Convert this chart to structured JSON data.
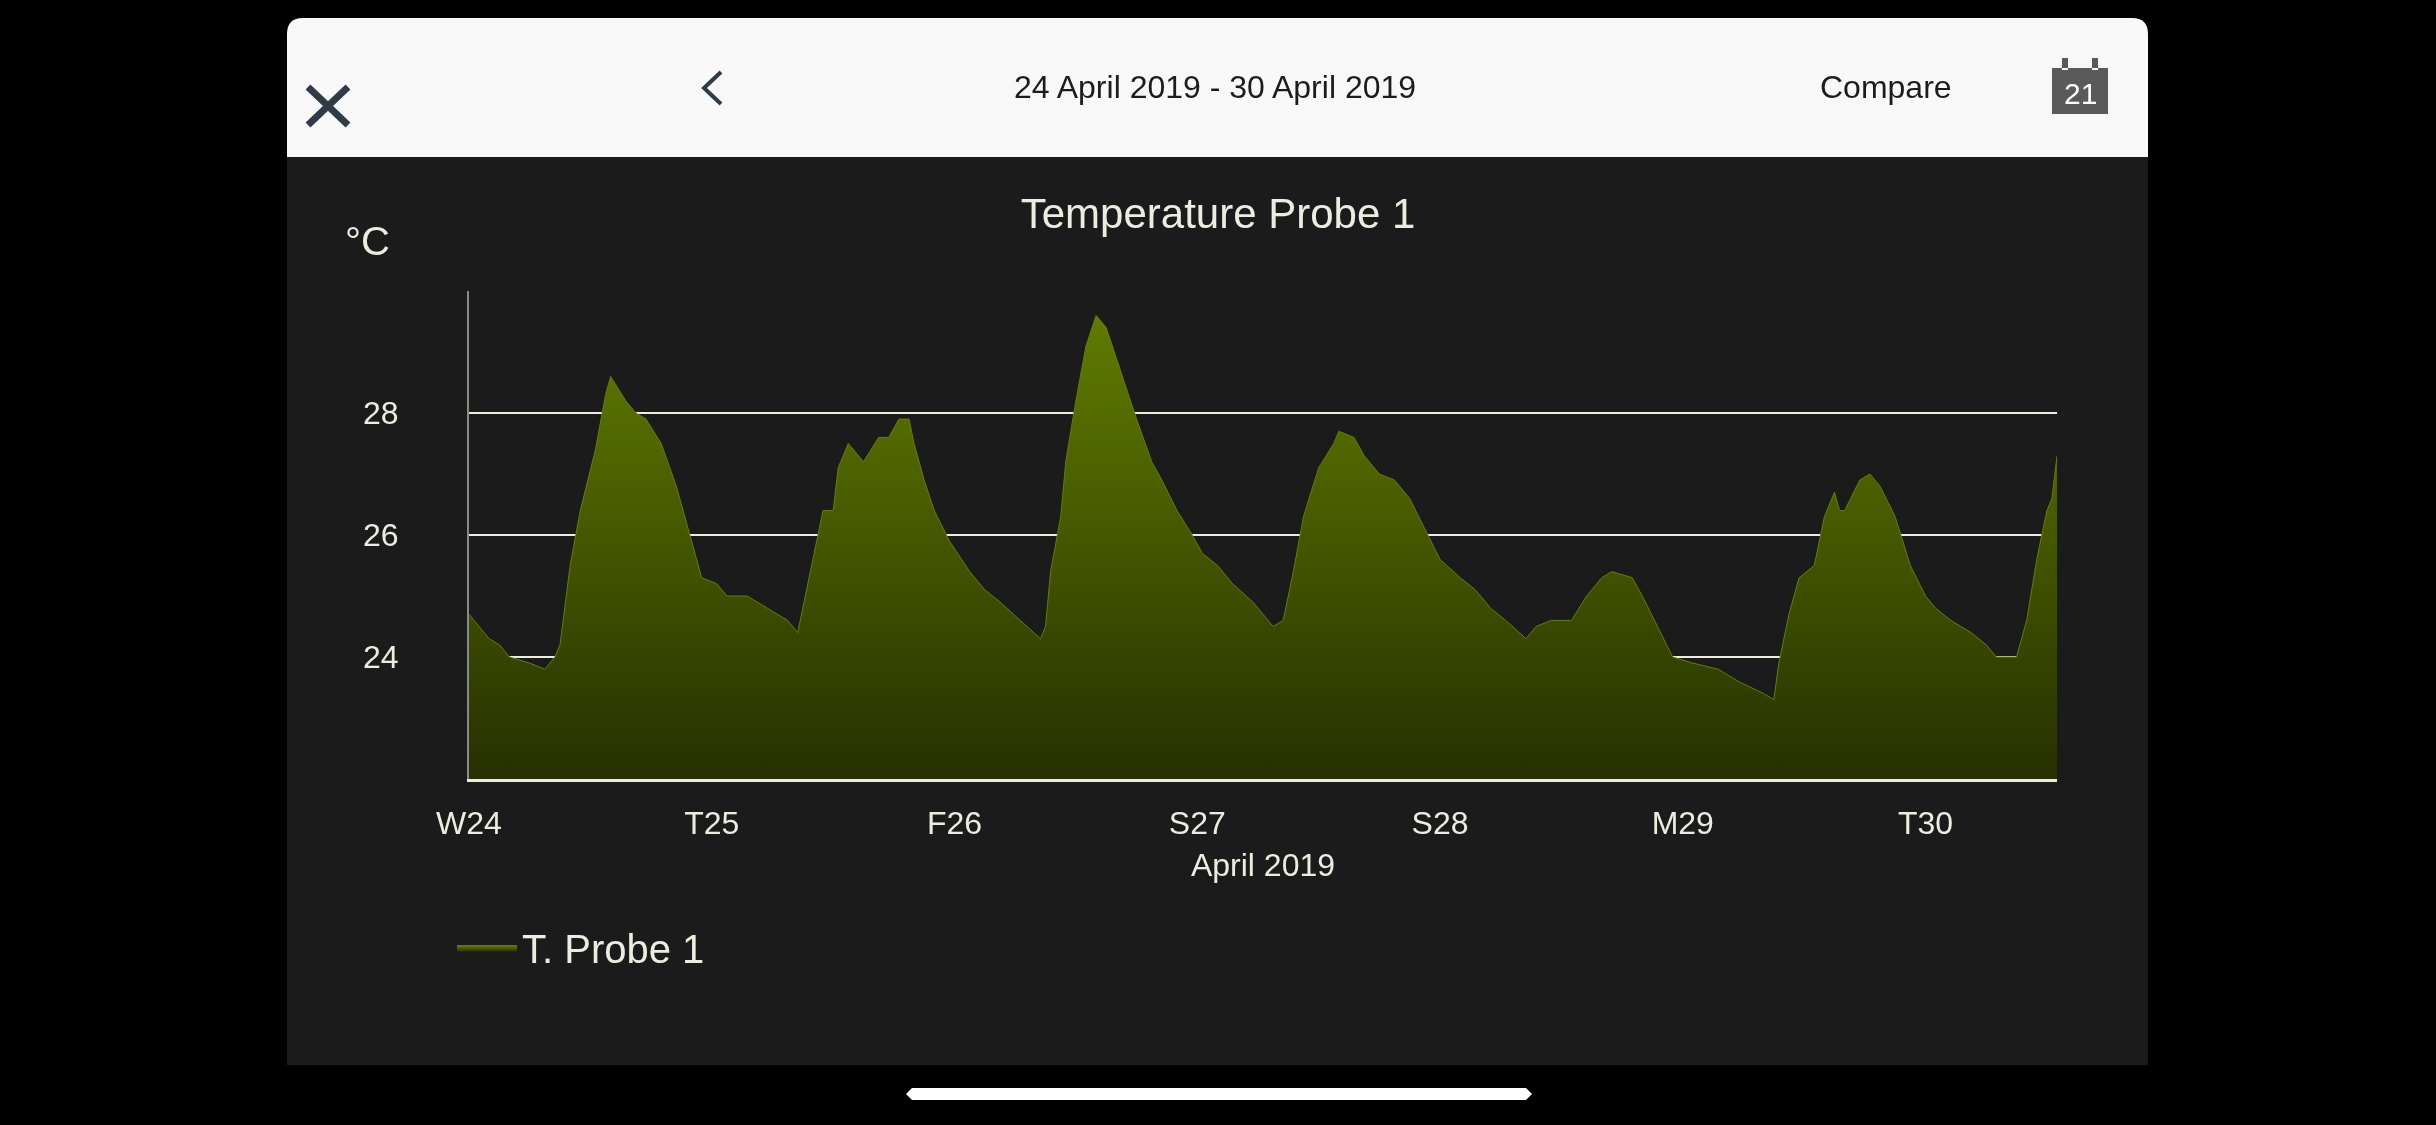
{
  "chart_data": {
    "type": "area",
    "title": "Temperature Probe 1",
    "subtitle": "24 April 2019 - 30 April 2019",
    "xlabel": "April 2019",
    "ylabel": "°C",
    "annotations": [
      "Compare",
      "21"
    ],
    "x": [
      "2019-04-24T00:00",
      "2019-04-24T00:30",
      "2019-04-24T01:30",
      "2019-04-24T02:00",
      "2019-04-24T03:00",
      "2019-04-24T04:00",
      "2019-04-24T06:00",
      "2019-04-24T07:30",
      "2019-04-24T08:30",
      "2019-04-24T09:00",
      "2019-04-24T10:00",
      "2019-04-24T11:00",
      "2019-04-24T12:30",
      "2019-04-24T13:30",
      "2019-04-24T14:00",
      "2019-04-24T15:30",
      "2019-04-24T16:30",
      "2019-04-24T17:30",
      "2019-04-24T19:00",
      "2019-04-24T20:30",
      "2019-04-24T22:00",
      "2019-04-24T23:00",
      "2019-04-25T00:30",
      "2019-04-25T01:30",
      "2019-04-25T03:30",
      "2019-04-25T05:30",
      "2019-04-25T07:30",
      "2019-04-25T08:30",
      "2019-04-25T09:00",
      "2019-04-25T10:00",
      "2019-04-25T11:00",
      "2019-04-25T12:00",
      "2019-04-25T12:30",
      "2019-04-25T13:30",
      "2019-04-25T15:00",
      "2019-04-25T16:30",
      "2019-04-25T17:30",
      "2019-04-25T18:30",
      "2019-04-25T19:30",
      "2019-04-25T20:00",
      "2019-04-25T21:00",
      "2019-04-25T22:00",
      "2019-04-25T23:30",
      "2019-04-26T01:30",
      "2019-04-26T03:00",
      "2019-04-26T04:30",
      "2019-04-26T06:30",
      "2019-04-26T08:30",
      "2019-04-26T09:00",
      "2019-04-26T09:30",
      "2019-04-26T10:30",
      "2019-04-26T11:00",
      "2019-04-26T12:00",
      "2019-04-26T13:00",
      "2019-04-26T14:00",
      "2019-04-26T15:00",
      "2019-04-26T16:00",
      "2019-04-26T17:00",
      "2019-04-26T18:00",
      "2019-04-26T19:30",
      "2019-04-26T20:30",
      "2019-04-26T22:00",
      "2019-04-26T23:30",
      "2019-04-27T00:30",
      "2019-04-27T02:00",
      "2019-04-27T03:30",
      "2019-04-27T05:30",
      "2019-04-27T06:30",
      "2019-04-27T07:30",
      "2019-04-27T08:30",
      "2019-04-27T09:30",
      "2019-04-27T10:30",
      "2019-04-27T12:00",
      "2019-04-27T13:30",
      "2019-04-27T14:00",
      "2019-04-27T15:30",
      "2019-04-27T16:30",
      "2019-04-27T18:00",
      "2019-04-27T19:30",
      "2019-04-27T21:00",
      "2019-04-27T22:30",
      "2019-04-28T00:00",
      "2019-04-28T02:00",
      "2019-04-28T03:30",
      "2019-04-28T05:00",
      "2019-04-28T06:30",
      "2019-04-28T08:30",
      "2019-04-28T09:30",
      "2019-04-28T11:00",
      "2019-04-28T13:00",
      "2019-04-28T14:30",
      "2019-04-28T16:00",
      "2019-04-28T17:00",
      "2019-04-28T19:00",
      "2019-04-28T20:00",
      "2019-04-28T21:30",
      "2019-04-28T23:00",
      "2019-04-29T01:00",
      "2019-04-29T03:30",
      "2019-04-29T05:30",
      "2019-04-29T08:00",
      "2019-04-29T09:00",
      "2019-04-29T09:30",
      "2019-04-29T10:30",
      "2019-04-29T11:30",
      "2019-04-29T13:00",
      "2019-04-29T14:00",
      "2019-04-29T15:00",
      "2019-04-29T15:30",
      "2019-04-29T16:00",
      "2019-04-29T17:30",
      "2019-04-29T18:30",
      "2019-04-29T19:30",
      "2019-04-29T21:00",
      "2019-04-29T22:30",
      "2019-04-30T00:00",
      "2019-04-30T01:00",
      "2019-04-30T02:30",
      "2019-04-30T04:30",
      "2019-04-30T06:00",
      "2019-04-30T07:00",
      "2019-04-30T09:00",
      "2019-04-30T10:00",
      "2019-04-30T11:00",
      "2019-04-30T12:00",
      "2019-04-30T12:30",
      "2019-04-30T13:00"
    ],
    "series": [
      {
        "name": "T. Probe 1",
        "color": "#647f00",
        "values": [
          24.7,
          24.6,
          24.4,
          24.3,
          24.2,
          24.0,
          23.9,
          23.8,
          24.0,
          24.2,
          25.5,
          26.4,
          27.4,
          28.3,
          28.6,
          28.2,
          28.0,
          27.9,
          27.5,
          26.8,
          25.9,
          25.3,
          25.2,
          25.0,
          25.0,
          24.8,
          24.6,
          24.4,
          24.8,
          25.6,
          26.4,
          26.4,
          27.1,
          27.5,
          27.2,
          27.6,
          27.6,
          27.9,
          27.9,
          27.5,
          26.9,
          26.4,
          25.9,
          25.4,
          25.1,
          24.9,
          24.6,
          24.3,
          24.5,
          25.4,
          26.3,
          27.2,
          28.2,
          29.1,
          29.6,
          29.4,
          28.9,
          28.4,
          27.9,
          27.2,
          26.9,
          26.4,
          26.0,
          25.7,
          25.5,
          25.2,
          24.9,
          24.7,
          24.5,
          24.6,
          25.4,
          26.3,
          27.1,
          27.5,
          27.7,
          27.6,
          27.3,
          27.0,
          26.9,
          26.6,
          26.1,
          25.6,
          25.3,
          25.1,
          24.8,
          24.6,
          24.3,
          24.5,
          24.6,
          24.6,
          25.0,
          25.3,
          25.4,
          25.3,
          25.0,
          24.5,
          24.0,
          23.9,
          23.8,
          23.6,
          23.4,
          23.3,
          23.9,
          24.7,
          25.3,
          25.5,
          26.3,
          26.7,
          26.4,
          26.4,
          26.9,
          27.0,
          26.8,
          26.3,
          25.5,
          25.0,
          24.8,
          24.6,
          24.4,
          24.2,
          24.0,
          24.0,
          24.6,
          25.6,
          26.4,
          26.6,
          27.3
        ]
      }
    ],
    "xlim": [
      "2019-04-24T00:00",
      "2019-04-30T13:00"
    ],
    "xticks": [
      {
        "value": "2019-04-24",
        "label": "W24"
      },
      {
        "value": "2019-04-25",
        "label": "T25"
      },
      {
        "value": "2019-04-26",
        "label": "F26"
      },
      {
        "value": "2019-04-27",
        "label": "S27"
      },
      {
        "value": "2019-04-28",
        "label": "S28"
      },
      {
        "value": "2019-04-29",
        "label": "M29"
      },
      {
        "value": "2019-04-30",
        "label": "T30"
      }
    ],
    "ylim": [
      22,
      30
    ],
    "yticks": [
      24,
      26,
      28
    ],
    "grid": "y",
    "legend": "bottom left"
  }
}
